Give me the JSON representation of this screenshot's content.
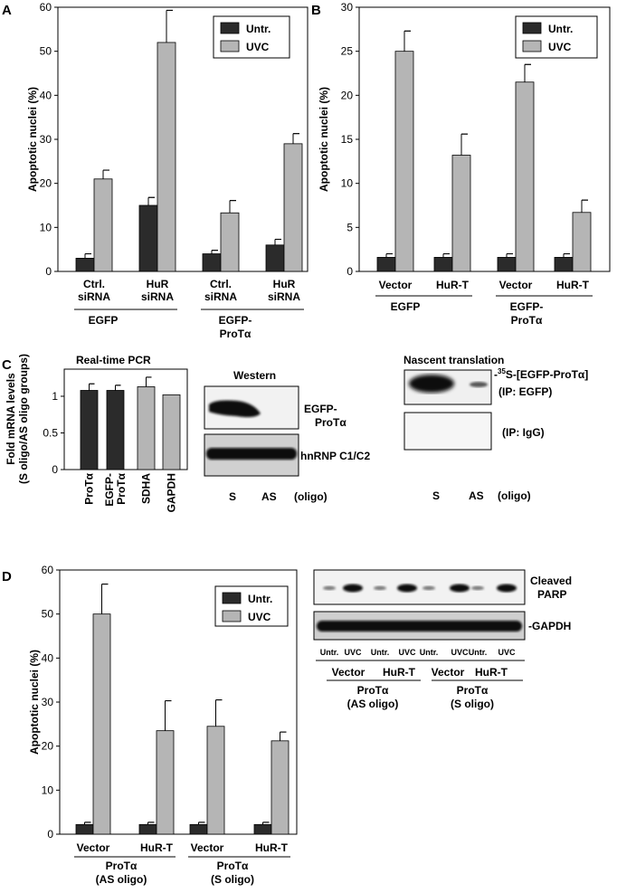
{
  "panels": {
    "A": {
      "label": "A"
    },
    "B": {
      "label": "B"
    },
    "C": {
      "label": "C"
    },
    "D": {
      "label": "D"
    }
  },
  "colors": {
    "untr": "#2b2b2b",
    "uvc": "#b5b5b5",
    "axis": "#000000"
  },
  "chart_data": [
    {
      "id": "A",
      "type": "bar",
      "ylabel": "Apoptotic nuclei (%)",
      "ylim": [
        0,
        60
      ],
      "yticks": [
        0,
        10,
        20,
        30,
        40,
        50,
        60
      ],
      "categories": [
        "Ctrl. siRNA",
        "HuR siRNA",
        "Ctrl. siRNA",
        "HuR siRNA"
      ],
      "category_lines": [
        [
          "Ctrl.",
          "siRNA"
        ],
        [
          "HuR",
          "siRNA"
        ],
        [
          "Ctrl.",
          "siRNA"
        ],
        [
          "HuR",
          "siRNA"
        ]
      ],
      "groups": [
        {
          "lines": [
            "EGFP"
          ],
          "categories": [
            0,
            1
          ]
        },
        {
          "lines": [
            "EGFP-",
            "ProTα"
          ],
          "categories": [
            2,
            3
          ]
        }
      ],
      "legend": {
        "position": "top-right",
        "entries": [
          "Untr.",
          "UVC"
        ]
      },
      "series": [
        {
          "name": "Untr.",
          "values": [
            3,
            15,
            4,
            6
          ],
          "errors": [
            1,
            1.8,
            0.8,
            1.3
          ]
        },
        {
          "name": "UVC",
          "values": [
            21,
            52,
            13.3,
            29
          ],
          "errors": [
            2,
            7.3,
            2.8,
            2.3
          ]
        }
      ]
    },
    {
      "id": "B",
      "type": "bar",
      "ylabel": "Apoptotic nuclei (%)",
      "ylim": [
        0,
        30
      ],
      "yticks": [
        0,
        5,
        10,
        15,
        20,
        25,
        30
      ],
      "categories": [
        "Vector",
        "HuR-T",
        "Vector",
        "HuR-T"
      ],
      "category_lines": [
        [
          "Vector"
        ],
        [
          "HuR-T"
        ],
        [
          "Vector"
        ],
        [
          "HuR-T"
        ]
      ],
      "groups": [
        {
          "lines": [
            "EGFP"
          ],
          "categories": [
            0,
            1
          ]
        },
        {
          "lines": [
            "EGFP-",
            "ProTα"
          ],
          "categories": [
            2,
            3
          ]
        }
      ],
      "legend": {
        "position": "top-right",
        "entries": [
          "Untr.",
          "UVC"
        ]
      },
      "series": [
        {
          "name": "Untr.",
          "values": [
            1.6,
            1.6,
            1.6,
            1.6
          ],
          "errors": [
            0.4,
            0.4,
            0.4,
            0.4
          ]
        },
        {
          "name": "UVC",
          "values": [
            25,
            13.2,
            21.5,
            6.7
          ],
          "errors": [
            2.3,
            2.4,
            2,
            1.4
          ]
        }
      ]
    },
    {
      "id": "C",
      "type": "bar",
      "title": "Real-time PCR",
      "ylabel": "Fold mRNA levels\n(S oligo/AS oligo groups)",
      "ylim": [
        0,
        1.37
      ],
      "yticks": [
        0,
        0.5,
        1
      ],
      "ytick_labels": [
        "0",
        "0.5",
        "1"
      ],
      "categories": [
        "ProTα",
        "EGFP-ProTα",
        "SDHA",
        "GAPDH"
      ],
      "category_lines": [
        [
          "ProTα"
        ],
        [
          "EGFP-",
          "ProTα"
        ],
        [
          "SDHA"
        ],
        [
          "GAPDH"
        ]
      ],
      "bar_colors": [
        "#2b2b2b",
        "#2b2b2b",
        "#b5b5b5",
        "#b5b5b5"
      ],
      "values": [
        1.08,
        1.08,
        1.13,
        1.02
      ],
      "errors": [
        0.09,
        0.07,
        0.13,
        0
      ]
    },
    {
      "id": "D",
      "type": "bar",
      "ylabel": "Apoptotic nuclei (%)",
      "ylim": [
        0,
        60
      ],
      "yticks": [
        0,
        10,
        20,
        30,
        40,
        50,
        60
      ],
      "categories": [
        "Vector",
        "HuR-T",
        "Vector",
        "HuR-T"
      ],
      "category_lines": [
        [
          "Vector"
        ],
        [
          "HuR-T"
        ],
        [
          "Vector"
        ],
        [
          "HuR-T"
        ]
      ],
      "groups": [
        {
          "lines": [
            "ProTα",
            "(AS oligo)"
          ],
          "categories": [
            0,
            1
          ]
        },
        {
          "lines": [
            "ProTα",
            "(S oligo)"
          ],
          "categories": [
            2,
            3
          ]
        }
      ],
      "legend": {
        "position": "top-right",
        "entries": [
          "Untr.",
          "UVC"
        ]
      },
      "series": [
        {
          "name": "Untr.",
          "values": [
            2.2,
            2.2,
            2.2,
            2.2
          ],
          "errors": [
            0.5,
            0.5,
            0.5,
            0.5
          ]
        },
        {
          "name": "UVC",
          "values": [
            50,
            23.5,
            24.5,
            21.2
          ],
          "errors": [
            6.8,
            6.8,
            6,
            2
          ]
        }
      ]
    }
  ],
  "blots": {
    "western": {
      "title": "Western",
      "bands": [
        [
          "EGFP-",
          "ProTα"
        ],
        [
          "hnRNP C1/C2"
        ]
      ],
      "lanes": [
        "S",
        "AS",
        "(oligo)"
      ]
    },
    "nascent": {
      "title": "Nascent translation",
      "bands": [
        [
          "S-[EGFP-ProTα]",
          "(IP: EGFP)"
        ],
        [
          "(IP: IgG)"
        ]
      ],
      "superscript": "35",
      "lanes": [
        "S",
        "AS",
        "(oligo)"
      ]
    },
    "parp": {
      "bands": [
        [
          "Cleaved",
          "PARP"
        ],
        [
          "GAPDH"
        ]
      ],
      "lane_labels": [
        "Untr.",
        "UVC",
        "Untr.",
        "UVC",
        "Untr.",
        "UVC",
        "Untr.",
        "UVC"
      ],
      "groups": [
        "Vector",
        "HuR-T",
        "Vector",
        "HuR-T"
      ],
      "supergroups": [
        [
          "ProTα",
          "(AS oligo)"
        ],
        [
          "ProTα",
          "(S oligo)"
        ]
      ]
    }
  }
}
